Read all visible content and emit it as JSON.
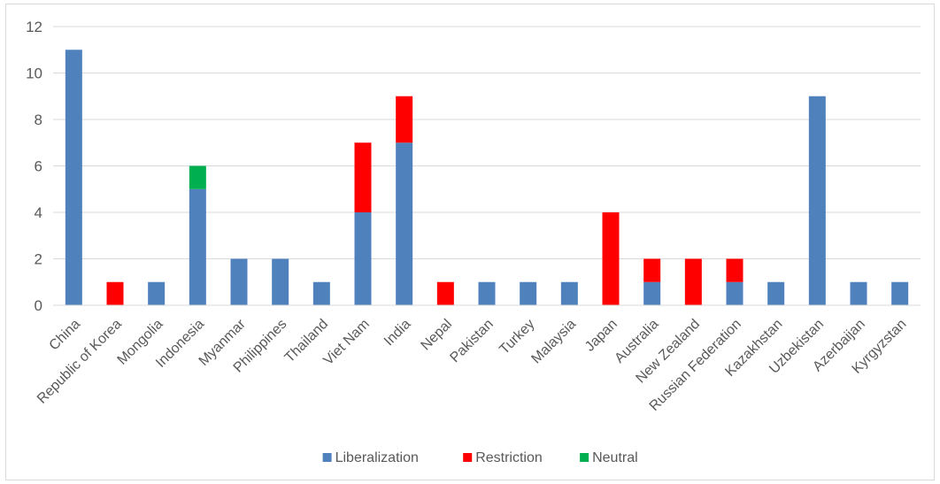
{
  "chart_data": {
    "type": "bar",
    "stacked": true,
    "title": "",
    "xlabel": "",
    "ylabel": "",
    "ylim": [
      0,
      12
    ],
    "yticks": [
      0,
      2,
      4,
      6,
      8,
      10,
      12
    ],
    "grid": true,
    "legend_position": "bottom",
    "categories": [
      "China",
      "Republic of Korea",
      "Mongolia",
      "Indonesia",
      "Myanmar",
      "Philippines",
      "Thailand",
      "Viet Nam",
      "India",
      "Nepal",
      "Pakistan",
      "Turkey",
      "Malaysia",
      "Japan",
      "Australia",
      "New Zealand",
      "Russian Federation",
      "Kazakhstan",
      "Uzbekistan",
      "Azerbaijan",
      "Kyrgyzstan"
    ],
    "series": [
      {
        "name": "Liberalization",
        "color": "#4f81bd",
        "values": [
          11,
          0,
          1,
          5,
          2,
          2,
          1,
          4,
          7,
          0,
          1,
          1,
          1,
          0,
          1,
          0,
          1,
          1,
          9,
          1,
          1
        ]
      },
      {
        "name": "Restriction",
        "color": "#ff0000",
        "values": [
          0,
          1,
          0,
          0,
          0,
          0,
          0,
          3,
          2,
          1,
          0,
          0,
          0,
          4,
          1,
          2,
          1,
          0,
          0,
          0,
          0
        ]
      },
      {
        "name": "Neutral",
        "color": "#00b050",
        "values": [
          0,
          0,
          0,
          1,
          0,
          0,
          0,
          0,
          0,
          0,
          0,
          0,
          0,
          0,
          0,
          0,
          0,
          0,
          0,
          0,
          0
        ]
      }
    ]
  }
}
